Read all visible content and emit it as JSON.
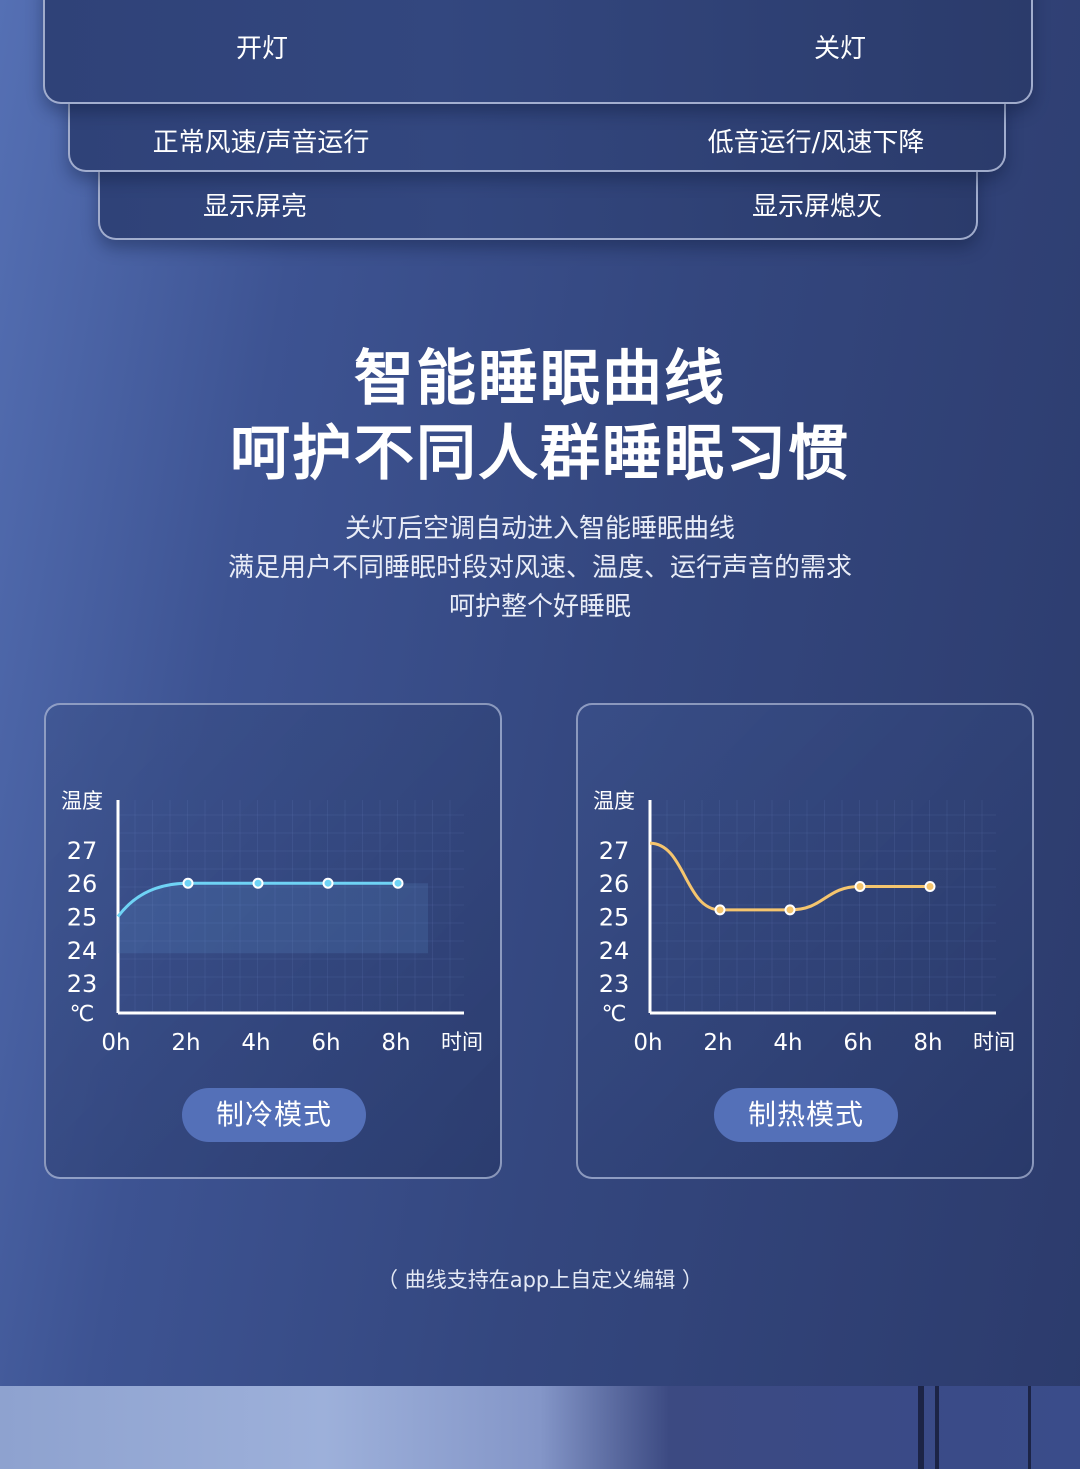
{
  "panels": [
    {
      "left": "开灯",
      "right": "关灯"
    },
    {
      "left": "正常风速/声音运行",
      "right": "低音运行/风速下降"
    },
    {
      "left": "显示屏亮",
      "right": "显示屏熄灭"
    }
  ],
  "headline": {
    "line1": "智能睡眠曲线",
    "line2": "呵护不同人群睡眠习惯"
  },
  "description": [
    "关灯后空调自动进入智能睡眠曲线",
    "满足用户不同睡眠时段对风速、温度、运行声音的需求",
    "呵护整个好睡眠"
  ],
  "note": "（ 曲线支持在app上自定义编辑 ）",
  "chart_data": [
    {
      "type": "line",
      "ylabel": "温度",
      "yunit": "℃",
      "xlabel": "时间",
      "x": [
        "0h",
        "2h",
        "4h",
        "6h",
        "8h"
      ],
      "y_ticks": [
        23,
        24,
        25,
        26,
        27
      ],
      "ylim": [
        22.1,
        28.5
      ],
      "grid": true,
      "color": "#6fd3f5",
      "values": [
        25,
        26,
        26,
        26,
        26
      ],
      "markers_from_index": 1,
      "mode_label": "制冷模式"
    },
    {
      "type": "line",
      "ylabel": "温度",
      "yunit": "℃",
      "xlabel": "时间",
      "x": [
        "0h",
        "2h",
        "4h",
        "6h",
        "8h"
      ],
      "y_ticks": [
        23,
        24,
        25,
        26,
        27
      ],
      "ylim": [
        22.1,
        28.5
      ],
      "grid": true,
      "color": "#f5c56e",
      "values": [
        27.2,
        25.2,
        25.2,
        25.9,
        25.9
      ],
      "markers_from_index": 1,
      "mode_label": "制热模式"
    }
  ]
}
